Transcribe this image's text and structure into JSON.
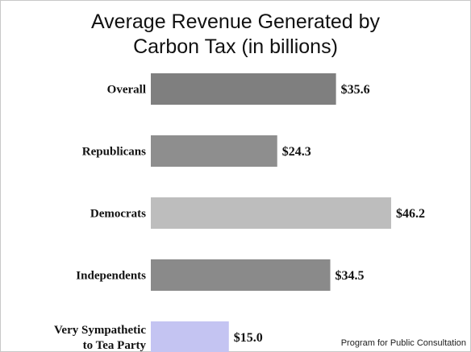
{
  "chart_data": {
    "type": "bar",
    "orientation": "horizontal",
    "title_lines": [
      "Average Revenue Generated by",
      "Carbon Tax (in billions)"
    ],
    "xlabel": "",
    "ylabel": "",
    "xlim": [
      0,
      50
    ],
    "grid": false,
    "categories": [
      {
        "lines": [
          "Overall"
        ]
      },
      {
        "lines": [
          "Republicans"
        ]
      },
      {
        "lines": [
          "Democrats"
        ]
      },
      {
        "lines": [
          "Independents"
        ]
      },
      {
        "lines": [
          "Very Sympathetic",
          "to Tea Party"
        ]
      }
    ],
    "values": [
      35.6,
      24.3,
      46.2,
      34.5,
      15.0
    ],
    "value_labels": [
      "$35.6",
      "$24.3",
      "$46.2",
      "$34.5",
      "$15.0"
    ],
    "bar_colors": [
      "#7f7f7f",
      "#8e8e8e",
      "#bdbdbd",
      "#8a8a8a",
      "#c4c4f2"
    ]
  },
  "footer": {
    "source": "Program for Public Consultation"
  }
}
